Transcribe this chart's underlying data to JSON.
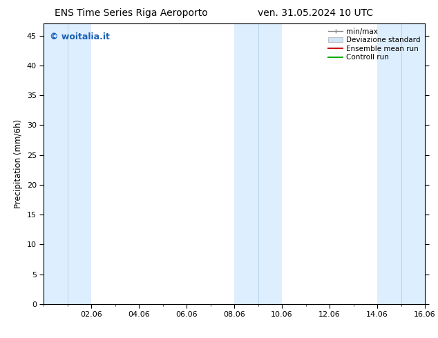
{
  "title_left": "ENS Time Series Riga Aeroporto",
  "title_right": "ven. 31.05.2024 10 UTC",
  "ylabel": "Precipitation (mm/6h)",
  "watermark": "© woitalia.it",
  "watermark_color": "#1a5fb4",
  "background_color": "#ffffff",
  "plot_bg_color": "#ffffff",
  "shade_color": "#ddeeff",
  "shade_line_color": "#b8d4ee",
  "ylim": [
    0,
    47
  ],
  "yticks": [
    0,
    5,
    10,
    15,
    20,
    25,
    30,
    35,
    40,
    45
  ],
  "xtick_labels": [
    "02.06",
    "04.06",
    "06.06",
    "08.06",
    "10.06",
    "12.06",
    "14.06",
    "16.06"
  ],
  "legend_labels": [
    "min/max",
    "Deviazione standard",
    "Ensemble mean run",
    "Controll run"
  ],
  "title_fontsize": 10,
  "axis_fontsize": 8.5,
  "tick_fontsize": 8,
  "watermark_fontsize": 9
}
